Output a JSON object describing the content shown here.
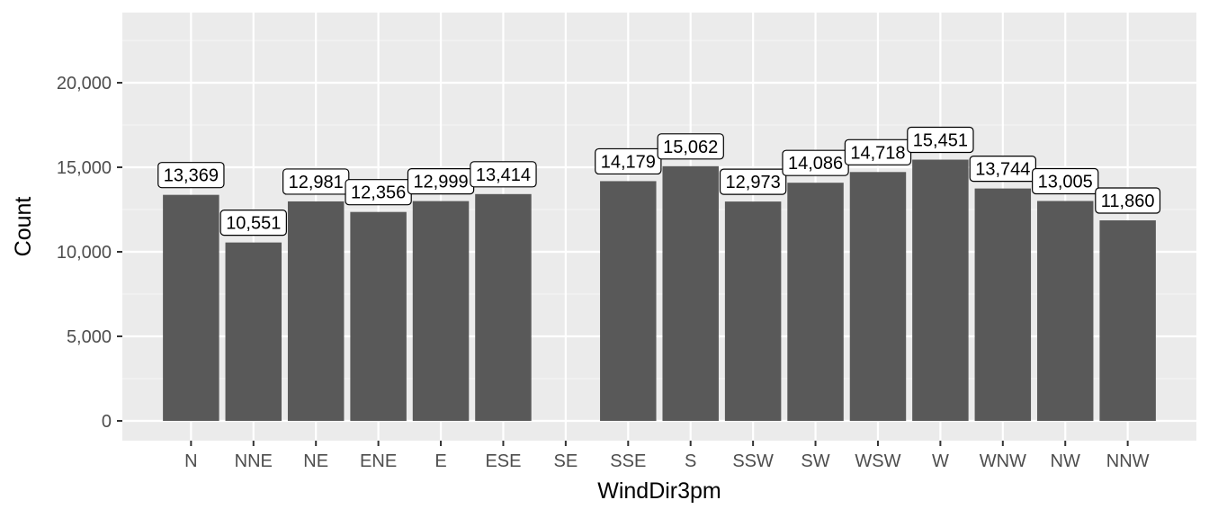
{
  "chart_data": {
    "type": "bar",
    "title": "",
    "xlabel": "WindDir3pm",
    "ylabel": "Count",
    "categories": [
      "N",
      "NNE",
      "NE",
      "ENE",
      "E",
      "ESE",
      "SE",
      "SSE",
      "S",
      "SSW",
      "SW",
      "WSW",
      "W",
      "WNW",
      "NW",
      "NNW"
    ],
    "values": [
      13369,
      10551,
      12981,
      12356,
      12999,
      13414,
      0,
      14179,
      15062,
      12973,
      14086,
      14718,
      15451,
      13744,
      13005,
      11860
    ],
    "data_labels": [
      "13,369",
      "10,551",
      "12,981",
      "12,356",
      "12,999",
      "13,414",
      "",
      "14,179",
      "15,062",
      "12,973",
      "14,086",
      "14,718",
      "15,451",
      "13,744",
      "13,005",
      "11,860"
    ],
    "yticks": [
      0,
      5000,
      10000,
      15000,
      20000
    ],
    "ytick_labels": [
      "0",
      "5,000",
      "10,000",
      "15,000",
      "20,000"
    ],
    "ylim": [
      -1000,
      24000
    ],
    "grid": true,
    "legend": "none",
    "colors": {
      "bar": "#595959",
      "panel_background": "#ebebeb",
      "grid_major": "#ffffff",
      "grid_minor": "#f5f5f5",
      "label_fill": "#ffffff",
      "label_border": "#000000",
      "tick_text": "#4d4d4d"
    }
  }
}
